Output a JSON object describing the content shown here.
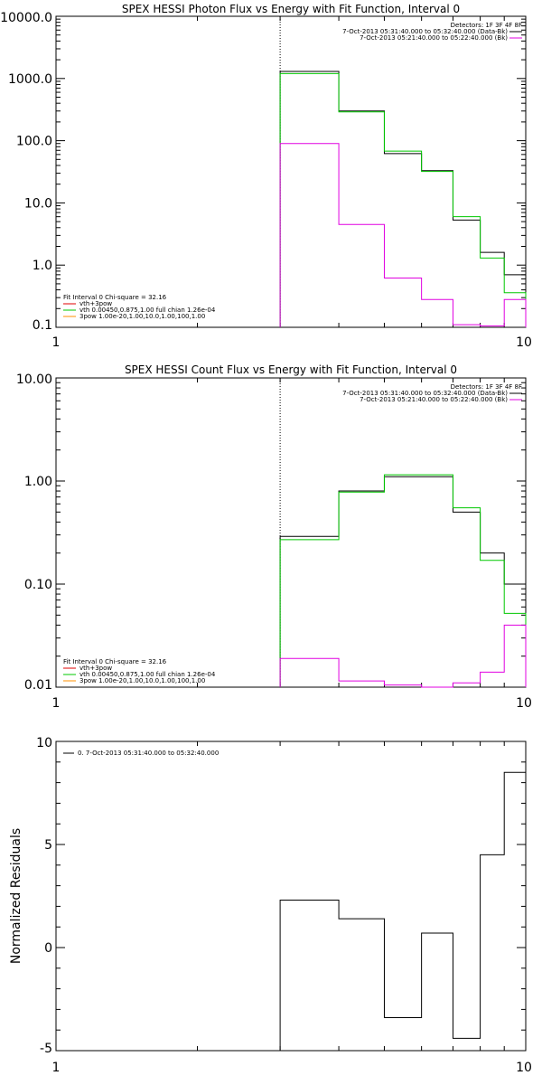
{
  "colors": {
    "data": "#000000",
    "fit": "#00c800",
    "bk": "#e000e0",
    "thick": "#ff9000",
    "red": "#e00000"
  },
  "chart_data": [
    {
      "type": "line",
      "title": "SPEX HESSI Photon Flux vs Energy with Fit Function, Interval 0",
      "xlabel": "",
      "ylabel": "",
      "xscale": "log",
      "yscale": "log",
      "xlim": [
        1,
        10
      ],
      "ylim": [
        0.1,
        10000
      ],
      "xticks": [
        "1",
        "10"
      ],
      "yticks": [
        "10000.0",
        "1000.0",
        "100.0",
        "10.0",
        "1.0",
        "0.1"
      ],
      "ytick_values": [
        10000,
        1000,
        100,
        10,
        1,
        0.1
      ],
      "vline_x": 3,
      "edges": [
        3,
        4,
        5,
        6,
        7,
        8,
        9,
        10
      ],
      "series": [
        {
          "name": "",
          "color": "data",
          "values": [
            1300,
            300,
            62,
            33,
            5.3,
            1.6,
            0.7
          ]
        },
        {
          "name": "vth",
          "color": "fit",
          "values": [
            1200,
            290,
            68,
            32,
            6.0,
            1.3,
            0.36
          ]
        },
        {
          "name": "",
          "color": "bk",
          "values": [
            90,
            4.5,
            0.62,
            0.28,
            0.11,
            0.105,
            0.28
          ]
        }
      ],
      "legend_top": {
        "detectors": "Detectors: 1F 3F 4F 8F",
        "line1": "7-Oct-2013 05:31:40.000 to 05:32:40.000 (Data-Bk)",
        "line2": "7-Oct-2013 05:21:40.000 to 05:22:40.000 (Bk)"
      },
      "legend_bottom": {
        "header": "Fit Interval 0   Chi-square = 32.16",
        "item1": "vth+3pow",
        "item2": "vth 0.00450,0.875,1.00  full chian 1.26e-04",
        "item3": "3pow 1.00e-20,1.00,10.0,1.00,100,1.00"
      }
    },
    {
      "type": "line",
      "title": "SPEX HESSI Count Flux vs Energy with Fit Function, Interval 0",
      "xlabel": "",
      "ylabel": "",
      "xscale": "log",
      "yscale": "log",
      "xlim": [
        1,
        10
      ],
      "ylim": [
        0.01,
        10
      ],
      "xticks": [
        "1",
        "10"
      ],
      "yticks": [
        "10.00",
        "1.00",
        "0.10",
        "0.01"
      ],
      "ytick_values": [
        10,
        1,
        0.1,
        0.01
      ],
      "vline_x": 3,
      "edges": [
        3,
        4,
        5,
        6,
        7,
        8,
        9,
        10
      ],
      "series": [
        {
          "name": "",
          "color": "data",
          "values": [
            0.29,
            0.8,
            1.1,
            1.1,
            0.5,
            0.2,
            0.1
          ]
        },
        {
          "name": "vth",
          "color": "fit",
          "values": [
            0.27,
            0.78,
            1.15,
            1.15,
            0.55,
            0.17,
            0.052
          ]
        },
        {
          "name": "",
          "color": "bk",
          "values": [
            0.019,
            0.0115,
            0.0105,
            0.01,
            0.011,
            0.014,
            0.04
          ]
        }
      ],
      "legend_top": {
        "detectors": "Detectors: 1F 3F 4F 8F",
        "line1": "7-Oct-2013 05:31:40.000 to 05:32:40.000 (Data-Bk)",
        "line2": "7-Oct-2013 05:21:40.000 to 05:22:40.000 (Bk)"
      },
      "legend_bottom": {
        "header": "Fit Interval 0   Chi-square = 32.16",
        "item1": "vth+3pow",
        "item2": "vth 0.00450,0.875,1.00  full chian 1.26e-04",
        "item3": "3pow 1.00e-20,1.00,10.0,1.00,100,1.00"
      }
    },
    {
      "type": "line",
      "title": "",
      "xlabel": "",
      "ylabel": "Normalized Residuals",
      "xscale": "log",
      "yscale": "linear",
      "xlim": [
        1,
        10
      ],
      "ylim": [
        -5,
        10
      ],
      "xticks": [
        "1",
        "10"
      ],
      "yticks": [
        "10",
        "5",
        "0",
        "-5"
      ],
      "ytick_values": [
        10,
        5,
        0,
        -5
      ],
      "edges": [
        3,
        4,
        5,
        6,
        7,
        8,
        9,
        10
      ],
      "series": [
        {
          "name": "0.  7-Oct-2013 05:31:40.000 to 05:32:40.000",
          "color": "data",
          "values": [
            2.3,
            1.4,
            -3.4,
            0.7,
            -4.4,
            4.5,
            8.5
          ]
        }
      ]
    }
  ]
}
